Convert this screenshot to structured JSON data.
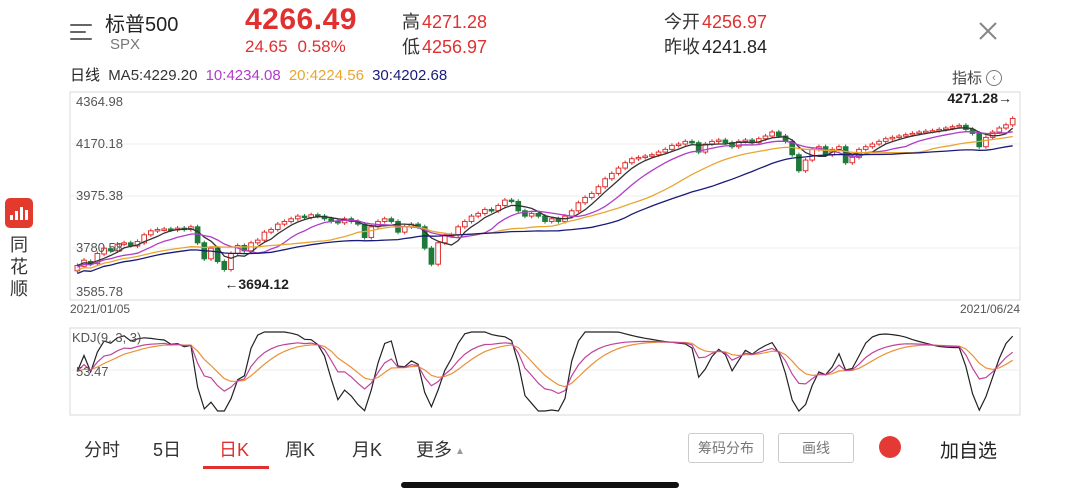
{
  "header": {
    "name": "标普500",
    "code": "SPX",
    "price": "4266.49",
    "change": "24.65",
    "change_pct": "0.58%",
    "high_label": "高",
    "high": "4271.28",
    "low_label": "低",
    "low": "4256.97",
    "open_label": "今开",
    "open": "4256.97",
    "prev_close_label": "昨收",
    "prev_close": "4241.84"
  },
  "ma_row": {
    "period_label": "日线",
    "ma5": "MA5:4229.20",
    "ma10": "10:4234.08",
    "ma20": "20:4224.56",
    "ma30": "30:4202.68",
    "indicator_label": "指标",
    "indicator_icon": "chevron-left-circle-icon"
  },
  "app": {
    "name": "同花顺",
    "icon": "tonghuashun-logo"
  },
  "colors": {
    "up": "#e03030",
    "down": "#1f7a3a",
    "ma5": "#333333",
    "ma10": "#b03cc8",
    "ma20": "#e8a631",
    "ma30": "#1a1a7a",
    "k": "#222222",
    "d": "#e8923a",
    "j": "#c0439a"
  },
  "chart_data": [
    {
      "type": "candlestick",
      "y_ticks": [
        "4364.98",
        "4170.18",
        "3975.38",
        "3780.58",
        "3585.78"
      ],
      "ylim": [
        3585.78,
        4364.98
      ],
      "start_date": "2021/01/05",
      "end_date": "2021/06/24",
      "max_annotation": "4271.28→",
      "min_annotation": "←3694.12",
      "candles": [
        [
          3695,
          3715
        ],
        [
          3712,
          3735
        ],
        [
          3730,
          3720
        ],
        [
          3722,
          3760
        ],
        [
          3758,
          3780
        ],
        [
          3778,
          3770
        ],
        [
          3770,
          3795
        ],
        [
          3795,
          3800
        ],
        [
          3800,
          3790
        ],
        [
          3788,
          3805
        ],
        [
          3800,
          3830
        ],
        [
          3830,
          3845
        ],
        [
          3845,
          3850
        ],
        [
          3850,
          3852
        ],
        [
          3852,
          3848
        ],
        [
          3848,
          3855
        ],
        [
          3855,
          3850
        ],
        [
          3850,
          3860
        ],
        [
          3860,
          3800
        ],
        [
          3800,
          3740
        ],
        [
          3740,
          3780
        ],
        [
          3780,
          3730
        ],
        [
          3730,
          3700
        ],
        [
          3700,
          3760
        ],
        [
          3760,
          3790
        ],
        [
          3790,
          3770
        ],
        [
          3770,
          3800
        ],
        [
          3800,
          3810
        ],
        [
          3810,
          3840
        ],
        [
          3840,
          3850
        ],
        [
          3850,
          3870
        ],
        [
          3870,
          3880
        ],
        [
          3880,
          3890
        ],
        [
          3890,
          3900
        ],
        [
          3900,
          3895
        ],
        [
          3895,
          3905
        ],
        [
          3905,
          3900
        ],
        [
          3900,
          3890
        ],
        [
          3890,
          3880
        ],
        [
          3880,
          3875
        ],
        [
          3875,
          3890
        ],
        [
          3890,
          3880
        ],
        [
          3880,
          3870
        ],
        [
          3870,
          3820
        ],
        [
          3820,
          3860
        ],
        [
          3860,
          3880
        ],
        [
          3880,
          3890
        ],
        [
          3890,
          3880
        ],
        [
          3880,
          3840
        ],
        [
          3840,
          3860
        ],
        [
          3860,
          3870
        ],
        [
          3870,
          3860
        ],
        [
          3860,
          3780
        ],
        [
          3780,
          3720
        ],
        [
          3720,
          3800
        ],
        [
          3800,
          3830
        ],
        [
          3830,
          3830
        ],
        [
          3830,
          3860
        ],
        [
          3860,
          3880
        ],
        [
          3880,
          3900
        ],
        [
          3900,
          3910
        ],
        [
          3910,
          3925
        ],
        [
          3925,
          3920
        ],
        [
          3920,
          3940
        ],
        [
          3940,
          3960
        ],
        [
          3960,
          3955
        ],
        [
          3955,
          3920
        ],
        [
          3920,
          3900
        ],
        [
          3900,
          3910
        ],
        [
          3910,
          3900
        ],
        [
          3900,
          3880
        ],
        [
          3880,
          3890
        ],
        [
          3890,
          3880
        ],
        [
          3880,
          3900
        ],
        [
          3900,
          3920
        ],
        [
          3920,
          3950
        ],
        [
          3950,
          3970
        ],
        [
          3970,
          3985
        ],
        [
          3985,
          4010
        ],
        [
          4010,
          4040
        ],
        [
          4040,
          4060
        ],
        [
          4060,
          4080
        ],
        [
          4080,
          4100
        ],
        [
          4100,
          4115
        ],
        [
          4115,
          4120
        ],
        [
          4120,
          4125
        ],
        [
          4125,
          4130
        ],
        [
          4130,
          4140
        ],
        [
          4140,
          4150
        ],
        [
          4150,
          4165
        ],
        [
          4165,
          4170
        ],
        [
          4170,
          4180
        ],
        [
          4180,
          4175
        ],
        [
          4175,
          4140
        ],
        [
          4140,
          4170
        ],
        [
          4170,
          4180
        ],
        [
          4180,
          4185
        ],
        [
          4185,
          4175
        ],
        [
          4175,
          4160
        ],
        [
          4160,
          4180
        ],
        [
          4180,
          4185
        ],
        [
          4185,
          4175
        ],
        [
          4175,
          4190
        ],
        [
          4190,
          4200
        ],
        [
          4200,
          4215
        ],
        [
          4215,
          4200
        ],
        [
          4200,
          4180
        ],
        [
          4180,
          4130
        ],
        [
          4130,
          4070
        ],
        [
          4070,
          4110
        ],
        [
          4110,
          4150
        ],
        [
          4150,
          4160
        ],
        [
          4160,
          4130
        ],
        [
          4130,
          4150
        ],
        [
          4150,
          4160
        ],
        [
          4160,
          4100
        ],
        [
          4100,
          4120
        ],
        [
          4120,
          4150
        ],
        [
          4150,
          4160
        ],
        [
          4160,
          4170
        ],
        [
          4170,
          4180
        ],
        [
          4180,
          4190
        ],
        [
          4190,
          4195
        ],
        [
          4195,
          4200
        ],
        [
          4200,
          4205
        ],
        [
          4205,
          4210
        ],
        [
          4210,
          4215
        ],
        [
          4215,
          4218
        ],
        [
          4218,
          4220
        ],
        [
          4220,
          4225
        ],
        [
          4225,
          4230
        ],
        [
          4230,
          4235
        ],
        [
          4235,
          4240
        ],
        [
          4240,
          4225
        ],
        [
          4225,
          4210
        ],
        [
          4210,
          4160
        ],
        [
          4160,
          4195
        ],
        [
          4195,
          4215
        ],
        [
          4215,
          4230
        ],
        [
          4230,
          4242
        ],
        [
          4242,
          4266
        ]
      ]
    },
    {
      "type": "line",
      "title": "KDJ(9, 3, 3)",
      "y_tick": "53.47",
      "series_names": [
        "K",
        "D",
        "J"
      ]
    }
  ],
  "tabs": [
    {
      "label": "分时"
    },
    {
      "label": "5日"
    },
    {
      "label": "日K"
    },
    {
      "label": "周K"
    },
    {
      "label": "月K"
    },
    {
      "label": "更多"
    }
  ],
  "buttons": {
    "chips": "筹码分布",
    "draw": "画线",
    "add_favorite": "加自选"
  }
}
